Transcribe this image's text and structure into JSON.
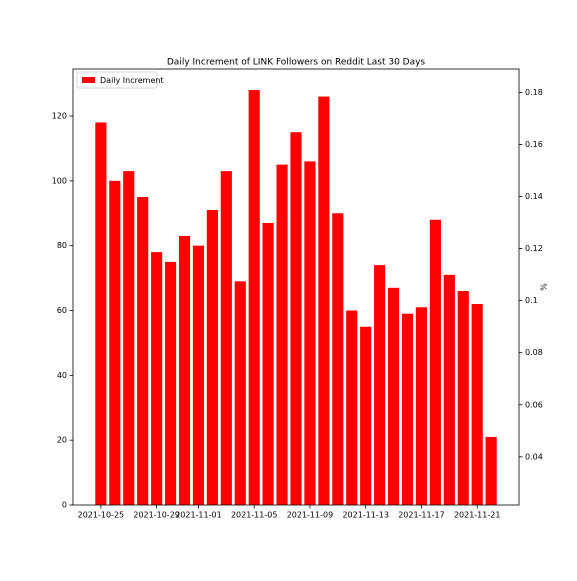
{
  "chart_data": {
    "type": "bar",
    "title": "Daily Increment of LINK Followers on Reddit Last 30 Days",
    "y2label": "%",
    "x": [
      "2021-10-25",
      "2021-10-26",
      "2021-10-27",
      "2021-10-28",
      "2021-10-29",
      "2021-10-30",
      "2021-10-31",
      "2021-11-01",
      "2021-11-02",
      "2021-11-03",
      "2021-11-04",
      "2021-11-05",
      "2021-11-06",
      "2021-11-07",
      "2021-11-08",
      "2021-11-09",
      "2021-11-10",
      "2021-11-11",
      "2021-11-12",
      "2021-11-13",
      "2021-11-14",
      "2021-11-15",
      "2021-11-16",
      "2021-11-17",
      "2021-11-18",
      "2021-11-19",
      "2021-11-20",
      "2021-11-21",
      "2021-11-22"
    ],
    "series": [
      {
        "name": "Daily Increment",
        "color": "#ff0000",
        "values": [
          118,
          100,
          103,
          95,
          78,
          75,
          83,
          80,
          91,
          103,
          69,
          128,
          87,
          105,
          115,
          106,
          126,
          90,
          60,
          55,
          74,
          67,
          59,
          61,
          88,
          71,
          66,
          62,
          21
        ]
      }
    ],
    "xlim": [
      "2021-10-23",
      "2021-11-24"
    ],
    "xticks": [
      "2021-10-25",
      "2021-10-29",
      "2021-11-01",
      "2021-11-05",
      "2021-11-09",
      "2021-11-13",
      "2021-11-17",
      "2021-11-21"
    ],
    "ylim": [
      0,
      134.5
    ],
    "yticks": [
      0,
      20,
      40,
      60,
      80,
      100,
      120
    ],
    "y2lim": [
      0.0215,
      0.189
    ],
    "y2ticks": [
      0.04,
      0.06,
      0.08,
      0.1,
      0.12,
      0.14,
      0.16,
      0.18
    ],
    "legend": "upper left"
  }
}
